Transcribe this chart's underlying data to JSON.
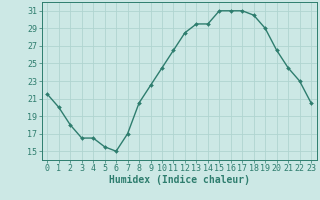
{
  "x": [
    0,
    1,
    2,
    3,
    4,
    5,
    6,
    7,
    8,
    9,
    10,
    11,
    12,
    13,
    14,
    15,
    16,
    17,
    18,
    19,
    20,
    21,
    22,
    23
  ],
  "y": [
    21.5,
    20.0,
    18.0,
    16.5,
    16.5,
    15.5,
    15.0,
    17.0,
    20.5,
    22.5,
    24.5,
    26.5,
    28.5,
    29.5,
    29.5,
    31.0,
    31.0,
    31.0,
    30.5,
    29.0,
    26.5,
    24.5,
    23.0,
    20.5
  ],
  "xlabel": "Humidex (Indice chaleur)",
  "xlim": [
    -0.5,
    23.5
  ],
  "ylim": [
    14.0,
    32.0
  ],
  "yticks": [
    15,
    17,
    19,
    21,
    23,
    25,
    27,
    29,
    31
  ],
  "xtick_labels": [
    "0",
    "1",
    "2",
    "3",
    "4",
    "5",
    "6",
    "7",
    "8",
    "9",
    "10",
    "11",
    "12",
    "13",
    "14",
    "15",
    "16",
    "17",
    "18",
    "19",
    "20",
    "21",
    "22",
    "23"
  ],
  "line_color": "#2e7d6e",
  "marker_color": "#2e7d6e",
  "bg_color": "#cce8e5",
  "grid_color": "#b0d4d0",
  "axis_color": "#2e7d6e",
  "tick_fontsize": 6,
  "xlabel_fontsize": 7
}
